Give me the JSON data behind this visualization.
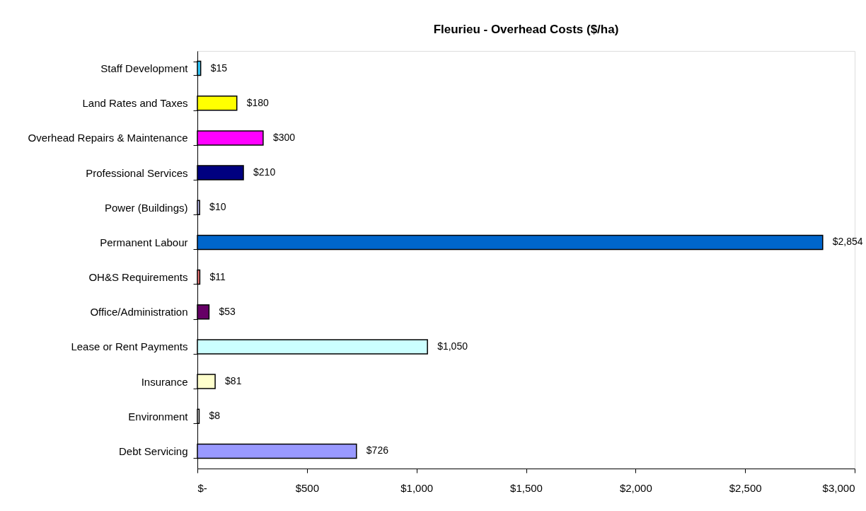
{
  "chart_data": {
    "type": "bar",
    "orientation": "horizontal",
    "title": "Fleurieu - Overhead Costs ($/ha)",
    "categories": [
      "Staff Development",
      "Land Rates and Taxes",
      "Overhead Repairs & Maintenance",
      "Professional Services",
      "Power (Buildings)",
      "Permanent Labour",
      "OH&S Requirements",
      "Office/Administration",
      "Lease or Rent Payments",
      "Insurance",
      "Environment",
      "Debt Servicing"
    ],
    "values": [
      15,
      180,
      300,
      210,
      10,
      2854,
      11,
      53,
      1050,
      81,
      8,
      726
    ],
    "colors": [
      "#33ccff",
      "#ffff00",
      "#ff00ff",
      "#000080",
      "#ccccff",
      "#0066cc",
      "#ff8080",
      "#660066",
      "#ccffff",
      "#ffffcc",
      "#ffffff",
      "#9999ff"
    ],
    "value_labels": [
      "$15",
      "$180",
      "$300",
      "$210",
      "$10",
      "$2,854",
      "$11",
      "$53",
      "$1,050",
      "$81",
      "$8",
      "$726"
    ],
    "xlim": [
      0,
      3000
    ],
    "xticks": [
      {
        "value": 0,
        "label": "$-"
      },
      {
        "value": 500,
        "label": "$500"
      },
      {
        "value": 1000,
        "label": "$1,000"
      },
      {
        "value": 1500,
        "label": "$1,500"
      },
      {
        "value": 2000,
        "label": "$2,000"
      },
      {
        "value": 2500,
        "label": "$2,500"
      },
      {
        "value": 3000,
        "label": "$3,000"
      }
    ],
    "grid": false
  }
}
